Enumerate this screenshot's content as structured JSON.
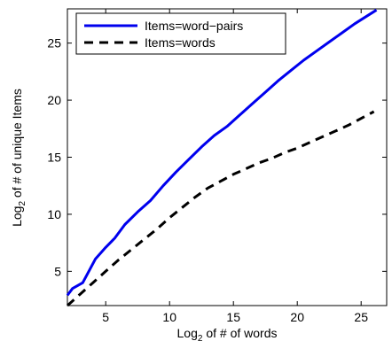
{
  "chart_data": {
    "type": "line",
    "title": "",
    "xlabel": {
      "base": "Log",
      "sub": "2",
      "rest": " of # of words"
    },
    "ylabel": {
      "base": "Log",
      "sub": "2",
      "rest": " of # of unique Items"
    },
    "xlim": [
      2,
      27
    ],
    "ylim": [
      2,
      28
    ],
    "xticks": [
      5,
      10,
      15,
      20,
      25
    ],
    "yticks": [
      5,
      10,
      15,
      20,
      25
    ],
    "legend_position": "top-left",
    "series": [
      {
        "name": "Items=word−pairs",
        "color": "#0000ee",
        "style": "solid",
        "x": [
          2,
          2.4,
          3.2,
          4.2,
          5.0,
          5.7,
          6.5,
          7.5,
          8.5,
          9.5,
          10.5,
          11.5,
          12.5,
          13.5,
          14.5,
          15.5,
          16.5,
          17.5,
          18.5,
          19.5,
          20.5,
          21.5,
          22.5,
          23.5,
          24.5,
          25.5,
          26.2
        ],
        "y": [
          2.9,
          3.5,
          4.0,
          6.1,
          7.1,
          7.9,
          9.1,
          10.2,
          11.2,
          12.5,
          13.7,
          14.8,
          15.9,
          16.9,
          17.7,
          18.7,
          19.7,
          20.7,
          21.7,
          22.6,
          23.5,
          24.3,
          25.1,
          25.9,
          26.7,
          27.4,
          27.9
        ]
      },
      {
        "name": "Items=words",
        "color": "#000000",
        "style": "dashed",
        "x": [
          2,
          3,
          4,
          5,
          6,
          7,
          8,
          9,
          10,
          11,
          12,
          13,
          14,
          15,
          16,
          17,
          18,
          19,
          20,
          21,
          22,
          23,
          24,
          25,
          26
        ],
        "y": [
          2.0,
          3.0,
          4.0,
          5.0,
          6.0,
          6.9,
          7.8,
          8.7,
          9.7,
          10.6,
          11.5,
          12.3,
          12.9,
          13.5,
          14.0,
          14.5,
          14.9,
          15.4,
          15.8,
          16.3,
          16.8,
          17.3,
          17.8,
          18.4,
          19.0
        ]
      }
    ]
  }
}
